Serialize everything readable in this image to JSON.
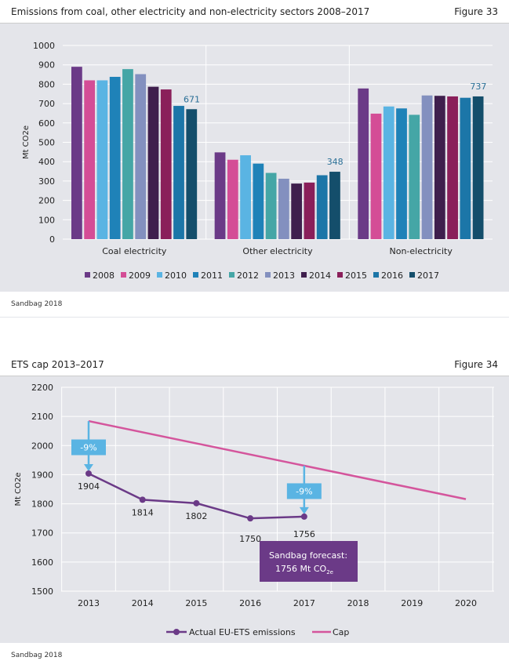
{
  "chart_data": [
    {
      "type": "bar",
      "title": "Emissions from coal, other electricity and non-electricity sectors 2008–2017",
      "figure": "Figure 33",
      "source": "Sandbag 2018",
      "ylabel": "Mt CO2e",
      "ylim": [
        0,
        1000
      ],
      "yticks": [
        0,
        100,
        200,
        300,
        400,
        500,
        600,
        700,
        800,
        900,
        1000
      ],
      "grid": true,
      "legend": "bottom",
      "categories": [
        "Coal electricity",
        "Other electricity",
        "Non-electricity"
      ],
      "series": [
        {
          "name": "2008",
          "color": "#6b3a87",
          "values": [
            890,
            448,
            778
          ]
        },
        {
          "name": "2009",
          "color": "#d44d96",
          "values": [
            820,
            410,
            648
          ]
        },
        {
          "name": "2010",
          "color": "#5ab4e3",
          "values": [
            820,
            433,
            685
          ]
        },
        {
          "name": "2011",
          "color": "#1f82b8",
          "values": [
            838,
            390,
            675
          ]
        },
        {
          "name": "2012",
          "color": "#45a6a6",
          "values": [
            878,
            342,
            642
          ]
        },
        {
          "name": "2013",
          "color": "#8390bf",
          "values": [
            852,
            312,
            742
          ]
        },
        {
          "name": "2014",
          "color": "#3f1f4d",
          "values": [
            787,
            287,
            740
          ]
        },
        {
          "name": "2015",
          "color": "#8a1f5a",
          "values": [
            773,
            292,
            737
          ]
        },
        {
          "name": "2016",
          "color": "#1c76a8",
          "values": [
            688,
            330,
            730
          ]
        },
        {
          "name": "2017",
          "color": "#144e6b",
          "values": [
            671,
            348,
            737
          ]
        }
      ],
      "data_labels": [
        "671",
        "348",
        "737"
      ]
    },
    {
      "type": "line",
      "title": "ETS cap 2013–2017",
      "figure": "Figure 34",
      "source": "Sandbag 2018",
      "ylabel": "Mt CO2e",
      "ylim": [
        1500,
        2200
      ],
      "yticks": [
        1500,
        1600,
        1700,
        1800,
        1900,
        2000,
        2100,
        2200
      ],
      "x": [
        2013,
        2014,
        2015,
        2016,
        2017,
        2018,
        2019,
        2020
      ],
      "grid": true,
      "legend": "bottom",
      "series": [
        {
          "name": "Actual EU-ETS emissions",
          "color": "#6b3a87",
          "x": [
            2013,
            2014,
            2015,
            2016,
            2017
          ],
          "values": [
            1904,
            1814,
            1802,
            1750,
            1756
          ],
          "labels": [
            "1904",
            "1814",
            "1802",
            "1750",
            "1756"
          ]
        },
        {
          "name": "Cap",
          "color": "#d4559c",
          "x": [
            2013,
            2020
          ],
          "values": [
            2084,
            1816
          ]
        }
      ],
      "annotations": [
        {
          "text": "-9%",
          "x": 2013
        },
        {
          "text": "-9%",
          "x": 2017
        }
      ],
      "callout": {
        "line1": "Sandbag forecast:",
        "line2": "1756 Mt CO",
        "sub": "2e"
      }
    }
  ]
}
